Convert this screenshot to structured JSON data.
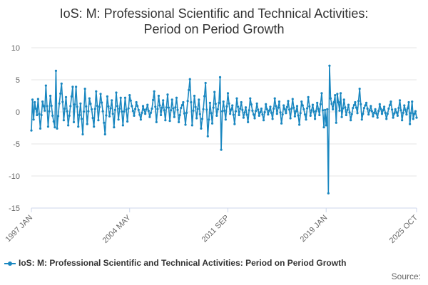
{
  "chart_data": {
    "type": "line",
    "title_line1": "IoS: M: Professional Scientific and Technical Activities:",
    "title_line2": "Period on Period Growth",
    "ylim": [
      -15,
      10
    ],
    "yticks": [
      "10",
      "5",
      "0",
      "-5",
      "-10",
      "-15"
    ],
    "ytick_values": [
      10,
      5,
      0,
      -5,
      -10,
      -15
    ],
    "xticks": [
      "1997 JAN",
      "2004 MAY",
      "2011 SEP",
      "2019 JAN",
      "2025 OCT"
    ],
    "xtick_index": [
      0,
      88,
      176,
      264,
      345
    ],
    "series": [
      {
        "name": "IoS: M: Professional Scientific and Technical Activities: Period on Period Growth",
        "color": "#1a87c0",
        "anchors": [
          [
            0,
            -2.9
          ],
          [
            1,
            1.9
          ],
          [
            2,
            -1.2
          ],
          [
            3,
            1.5
          ],
          [
            5,
            -0.5
          ],
          [
            6,
            2.0
          ],
          [
            8,
            -2.6
          ],
          [
            10,
            1.6
          ],
          [
            12,
            0.2
          ],
          [
            13,
            4.1
          ],
          [
            15,
            -2.3
          ],
          [
            17,
            2.5
          ],
          [
            19,
            -0.6
          ],
          [
            21,
            -2.4
          ],
          [
            22,
            6.4
          ],
          [
            23,
            -2.6
          ],
          [
            25,
            1.3
          ],
          [
            27,
            4.4
          ],
          [
            29,
            -1.3
          ],
          [
            31,
            2.3
          ],
          [
            33,
            -2.1
          ],
          [
            35,
            0.9
          ],
          [
            37,
            3.9
          ],
          [
            38,
            -1.6
          ],
          [
            40,
            3.9
          ],
          [
            42,
            -2.3
          ],
          [
            44,
            1.3
          ],
          [
            46,
            -3.5
          ],
          [
            48,
            3.6
          ],
          [
            50,
            -1.9
          ],
          [
            52,
            2.1
          ],
          [
            54,
            0.4
          ],
          [
            56,
            -2.3
          ],
          [
            58,
            3.2
          ],
          [
            60,
            -1.3
          ],
          [
            62,
            2.8
          ],
          [
            64,
            0.1
          ],
          [
            66,
            -3.5
          ],
          [
            68,
            2.4
          ],
          [
            70,
            -0.7
          ],
          [
            72,
            1.8
          ],
          [
            74,
            -2.4
          ],
          [
            76,
            3.0
          ],
          [
            78,
            -1.2
          ],
          [
            80,
            2.2
          ],
          [
            82,
            -2.1
          ],
          [
            84,
            2.2
          ],
          [
            86,
            -1.5
          ],
          [
            88,
            2.6
          ],
          [
            90,
            0.9
          ],
          [
            92,
            -0.6
          ],
          [
            94,
            1.5
          ],
          [
            96,
            0.3
          ],
          [
            98,
            -1.2
          ],
          [
            100,
            0.9
          ],
          [
            102,
            -0.3
          ],
          [
            104,
            1.1
          ],
          [
            106,
            -0.8
          ],
          [
            108,
            0.5
          ],
          [
            110,
            3.2
          ],
          [
            112,
            -1.6
          ],
          [
            114,
            2.5
          ],
          [
            116,
            -0.5
          ],
          [
            118,
            1.8
          ],
          [
            120,
            -1.3
          ],
          [
            122,
            2.7
          ],
          [
            124,
            -1.4
          ],
          [
            126,
            1.9
          ],
          [
            128,
            -0.8
          ],
          [
            130,
            2.2
          ],
          [
            132,
            -1.6
          ],
          [
            134,
            0.6
          ],
          [
            136,
            1.5
          ],
          [
            138,
            -2.0
          ],
          [
            140,
            1.7
          ],
          [
            142,
            5.1
          ],
          [
            144,
            -2.1
          ],
          [
            146,
            2.5
          ],
          [
            148,
            -1.0
          ],
          [
            150,
            1.9
          ],
          [
            152,
            -2.6
          ],
          [
            154,
            0.4
          ],
          [
            156,
            4.5
          ],
          [
            158,
            -3.8
          ],
          [
            160,
            1.4
          ],
          [
            162,
            -1.8
          ],
          [
            164,
            3.1
          ],
          [
            166,
            -0.6
          ],
          [
            168,
            1.4
          ],
          [
            169,
            5.4
          ],
          [
            170,
            -5.9
          ],
          [
            171,
            0.1
          ],
          [
            172,
            1.6
          ],
          [
            174,
            -1.2
          ],
          [
            176,
            2.9
          ],
          [
            178,
            -0.3
          ],
          [
            180,
            1.0
          ],
          [
            182,
            -1.9
          ],
          [
            184,
            2.1
          ],
          [
            186,
            -0.5
          ],
          [
            188,
            1.5
          ],
          [
            190,
            -0.9
          ],
          [
            192,
            0.7
          ],
          [
            194,
            -1.6
          ],
          [
            196,
            2.1
          ],
          [
            198,
            0.2
          ],
          [
            200,
            -1.0
          ],
          [
            202,
            1.3
          ],
          [
            204,
            -0.6
          ],
          [
            206,
            0.5
          ],
          [
            208,
            -1.3
          ],
          [
            210,
            1.2
          ],
          [
            212,
            -0.4
          ],
          [
            214,
            0.8
          ],
          [
            216,
            -1.1
          ],
          [
            218,
            2.1
          ],
          [
            220,
            -0.3
          ],
          [
            222,
            1.6
          ],
          [
            224,
            -1.8
          ],
          [
            226,
            1.0
          ],
          [
            228,
            -0.2
          ],
          [
            230,
            1.7
          ],
          [
            232,
            -1.0
          ],
          [
            234,
            2.0
          ],
          [
            236,
            -0.7
          ],
          [
            238,
            0.9
          ],
          [
            240,
            -2.0
          ],
          [
            242,
            1.6
          ],
          [
            244,
            0.4
          ],
          [
            246,
            -1.2
          ],
          [
            248,
            2.3
          ],
          [
            250,
            -0.6
          ],
          [
            252,
            1.1
          ],
          [
            254,
            -1.1
          ],
          [
            256,
            1.4
          ],
          [
            258,
            -0.5
          ],
          [
            260,
            2.9
          ],
          [
            262,
            -2.4
          ],
          [
            263,
            0.3
          ],
          [
            264,
            -2.1
          ],
          [
            265,
            0.4
          ],
          [
            266,
            -12.7
          ],
          [
            267,
            7.2
          ],
          [
            268,
            2.1
          ],
          [
            270,
            0.4
          ],
          [
            272,
            2.6
          ],
          [
            273,
            -1.7
          ],
          [
            274,
            2.8
          ],
          [
            276,
            0.2
          ],
          [
            277,
            2.9
          ],
          [
            278,
            -0.8
          ],
          [
            280,
            1.9
          ],
          [
            282,
            -0.5
          ],
          [
            284,
            1.1
          ],
          [
            286,
            -1.3
          ],
          [
            288,
            0.6
          ],
          [
            290,
            1.5
          ],
          [
            292,
            -0.2
          ],
          [
            294,
            3.6
          ],
          [
            296,
            -1.2
          ],
          [
            298,
            0.6
          ],
          [
            300,
            1.4
          ],
          [
            302,
            -0.4
          ],
          [
            304,
            0.9
          ],
          [
            306,
            -0.7
          ],
          [
            308,
            0.4
          ],
          [
            310,
            -0.9
          ],
          [
            312,
            1.2
          ],
          [
            314,
            -0.3
          ],
          [
            316,
            0.8
          ],
          [
            318,
            -1.1
          ],
          [
            320,
            0.5
          ],
          [
            322,
            1.6
          ],
          [
            324,
            -0.9
          ],
          [
            326,
            0.4
          ],
          [
            328,
            -0.6
          ],
          [
            330,
            1.8
          ],
          [
            332,
            -1.3
          ],
          [
            334,
            1.0
          ],
          [
            336,
            -0.4
          ],
          [
            338,
            1.5
          ],
          [
            339,
            -1.9
          ],
          [
            340,
            -0.2
          ],
          [
            341,
            1.6
          ],
          [
            342,
            -1.1
          ],
          [
            343,
            -0.3
          ],
          [
            344,
            0.1
          ],
          [
            345,
            -0.9
          ]
        ]
      }
    ]
  },
  "legend": {
    "label": "IoS: M: Professional Scientific and Technical Activities: Period on Period Growth"
  },
  "source": {
    "label": "Source:"
  }
}
